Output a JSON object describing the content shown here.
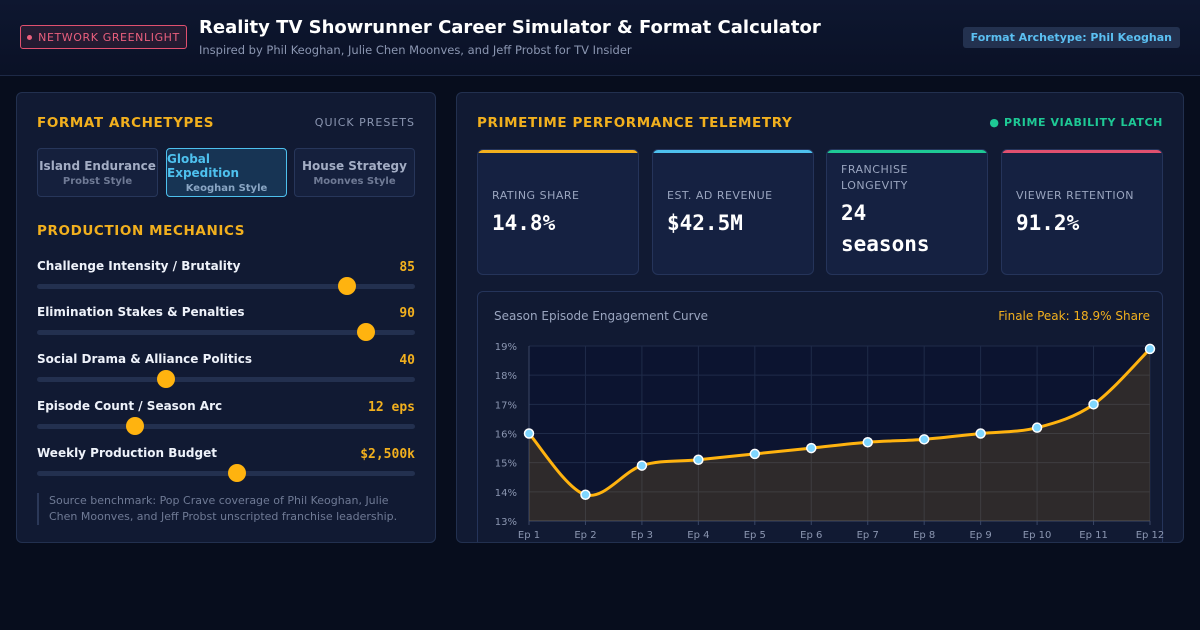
{
  "header": {
    "badge": "NETWORK GREENLIGHT",
    "title": "Reality TV Showrunner Career Simulator & Format Calculator",
    "subtitle": "Inspired by Phil Keoghan, Julie Chen Moonves, and Jeff Probst for TV Insider",
    "archetype_pill": "Format Archetype: Phil Keoghan"
  },
  "left": {
    "archetypes_title": "FORMAT ARCHETYPES",
    "quick_presets": "QUICK PRESETS",
    "presets": [
      {
        "title": "Island Endurance",
        "sub": "Probst Style",
        "active": false
      },
      {
        "title": "Global Expedition",
        "sub": "Keoghan Style",
        "active": true
      },
      {
        "title": "House Strategy",
        "sub": "Moonves Style",
        "active": false
      }
    ],
    "mechanics_title": "PRODUCTION MECHANICS",
    "sliders": [
      {
        "label": "Challenge Intensity / Brutality",
        "value": "85",
        "level": 0.82
      },
      {
        "label": "Elimination Stakes & Penalties",
        "value": "90",
        "level": 0.87
      },
      {
        "label": "Social Drama & Alliance Politics",
        "value": "40",
        "level": 0.34
      },
      {
        "label": "Episode Count / Season Arc",
        "value": "12 eps",
        "level": 0.26
      },
      {
        "label": "Weekly Production Budget",
        "value": "$2,500k",
        "level": 0.53
      }
    ],
    "note": "Source benchmark: Pop Crave coverage of Phil Keoghan, Julie Chen Moonves, and Jeff Probst unscripted franchise leadership."
  },
  "right": {
    "telemetry_title": "PRIMETIME PERFORMANCE TELEMETRY",
    "latch": "PRIME VIABILITY LATCH",
    "cards": [
      {
        "label": "RATING SHARE",
        "value": "14.8%",
        "color": "#f2b01e"
      },
      {
        "label": "EST. AD REVENUE",
        "value": "$42.5M",
        "color": "#4ec1ee"
      },
      {
        "label": "FRANCHISE LONGEVITY",
        "value": "24 seasons",
        "color": "#1ec995"
      },
      {
        "label": "VIEWER RETENTION",
        "value": "91.2%",
        "color": "#e0506f"
      }
    ],
    "chart_title": "Season Episode Engagement Curve",
    "chart_peak": "Finale Peak: 18.9% Share"
  },
  "colors": {
    "accent": "#f2b01e",
    "line": "#ffb30f",
    "point": "#7fd6ff"
  },
  "chart_data": {
    "type": "line",
    "title": "Season Episode Engagement Curve",
    "categories": [
      "Ep 1",
      "Ep 2",
      "Ep 3",
      "Ep 4",
      "Ep 5",
      "Ep 6",
      "Ep 7",
      "Ep 8",
      "Ep 9",
      "Ep 10",
      "Ep 11",
      "Ep 12"
    ],
    "values": [
      16.0,
      13.9,
      14.9,
      15.1,
      15.3,
      15.5,
      15.7,
      15.8,
      16.0,
      16.2,
      17.0,
      18.9
    ],
    "ylim": [
      13,
      19
    ],
    "yticks": [
      "13%",
      "14%",
      "15%",
      "16%",
      "17%",
      "18%",
      "19%"
    ],
    "grid": true
  }
}
